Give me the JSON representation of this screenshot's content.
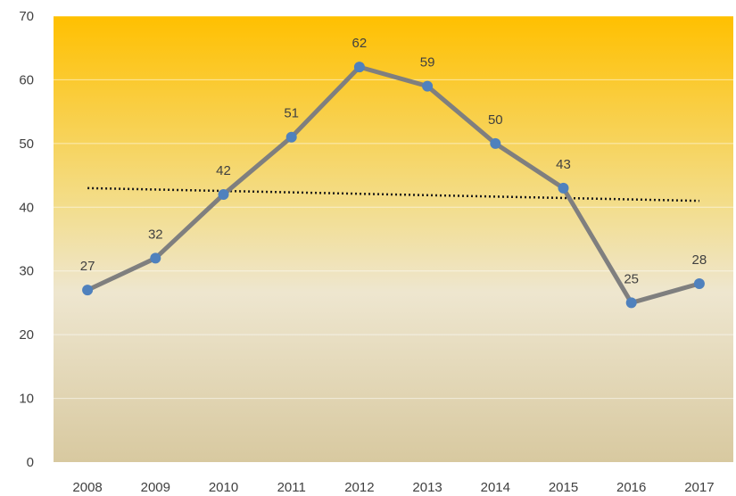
{
  "chart_data": {
    "type": "line",
    "title": "",
    "xlabel": "",
    "ylabel": "",
    "categories": [
      "2008",
      "2009",
      "2010",
      "2011",
      "2012",
      "2013",
      "2014",
      "2015",
      "2016",
      "2017"
    ],
    "series": [
      {
        "values": [
          27,
          32,
          42,
          51,
          62,
          59,
          50,
          43,
          25,
          28
        ],
        "line_color": "#7f7f7f",
        "marker_color": "#4f81bd",
        "data_labels": [
          "27",
          "32",
          "42",
          "51",
          "62",
          "59",
          "50",
          "43",
          "25",
          "28"
        ]
      }
    ],
    "trendline": {
      "type": "linear",
      "start": 43,
      "end": 41,
      "style": "dotted",
      "color": "#1a1a1a"
    },
    "ylim": [
      0,
      70
    ],
    "y_ticks": [
      "0",
      "10",
      "20",
      "30",
      "40",
      "50",
      "60",
      "70"
    ],
    "grid": true,
    "legend": "none",
    "background_gradient": [
      "#ffc000",
      "#f3dd8a",
      "#eee6cf",
      "#d8c9a0"
    ]
  }
}
